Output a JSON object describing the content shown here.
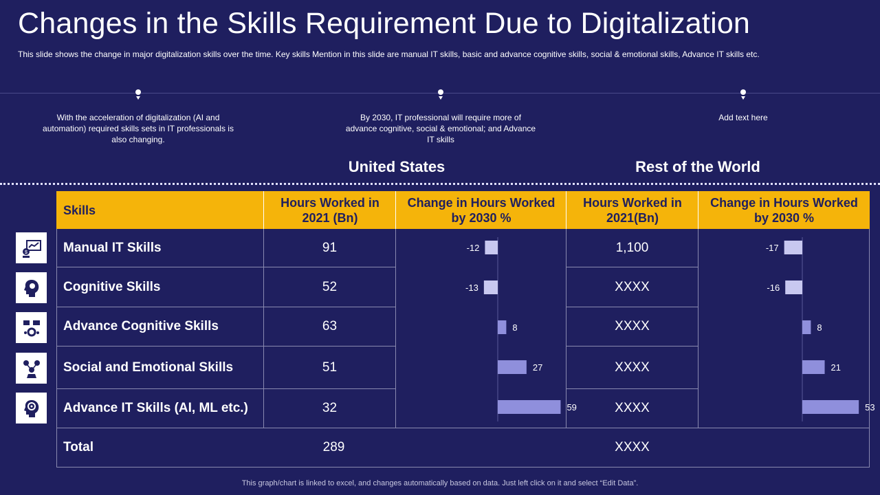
{
  "title": "Changes in the Skills Requirement Due to Digitalization",
  "subtitle": "This slide shows the change in major digitalization skills over the time. Key skills Mention in this slide are manual IT skills, basic and advance  cognitive  skills, social & emotional skills, Advance IT skills etc.",
  "notes": [
    "With the acceleration of digitalization (AI and automation) required  skills sets in IT professionals  is also changing.",
    "By 2030, IT professional will require  more of advance  cognitive,  social & emotional; and Advance  IT skills",
    "Add text here"
  ],
  "regions": {
    "us": "United States",
    "row": "Rest of the World"
  },
  "table": {
    "headers": {
      "skills": "Skills",
      "us_hours": "Hours Worked in 2021 (Bn)",
      "us_change": "Change in Hours Worked by 2030 %",
      "row_hours": "Hours Worked in 2021(Bn)",
      "row_change": "Change in Hours Worked by 2030 %"
    },
    "rows": [
      {
        "skill": "Manual IT Skills",
        "us_hours": "91",
        "row_hours": "1,100"
      },
      {
        "skill": "Cognitive Skills",
        "us_hours": "52",
        "row_hours": "XXXX"
      },
      {
        "skill": "Advance Cognitive Skills",
        "us_hours": "63",
        "row_hours": "XXXX"
      },
      {
        "skill": "Social and Emotional Skills",
        "us_hours": "51",
        "row_hours": "XXXX"
      },
      {
        "skill": "Advance IT Skills (AI, ML etc.)",
        "us_hours": "32",
        "row_hours": "XXXX"
      }
    ],
    "total": {
      "label": "Total",
      "us_hours": "289",
      "row_hours": "XXXX"
    }
  },
  "icons": [
    "finance-chart-icon",
    "head-brain-icon",
    "cognitive-screen-icon",
    "social-people-icon",
    "ai-head-icon"
  ],
  "footer": "This graph/chart is linked to excel,  and changes automatically based on data. Just left click on it and select “Edit Data”.",
  "colors": {
    "background": "#1f1f5f",
    "header": "#f5b40a",
    "bar_negative": "#c8c8f0",
    "bar_positive": "#8f8fdc"
  },
  "chart_data": [
    {
      "type": "bar",
      "title": "United States - Change in Hours Worked by 2030 %",
      "categories": [
        "Manual IT Skills",
        "Cognitive Skills",
        "Advance Cognitive Skills",
        "Social and Emotional Skills",
        "Advance IT Skills (AI, ML etc.)"
      ],
      "values": [
        -12,
        -13,
        8,
        27,
        59
      ],
      "orientation": "horizontal"
    },
    {
      "type": "bar",
      "title": "Rest of the World - Change in Hours Worked by 2030 %",
      "categories": [
        "Manual IT Skills",
        "Cognitive Skills",
        "Advance Cognitive Skills",
        "Social and Emotional Skills",
        "Advance IT Skills (AI, ML etc.)"
      ],
      "values": [
        -17,
        -16,
        8,
        21,
        53
      ],
      "orientation": "horizontal"
    }
  ]
}
